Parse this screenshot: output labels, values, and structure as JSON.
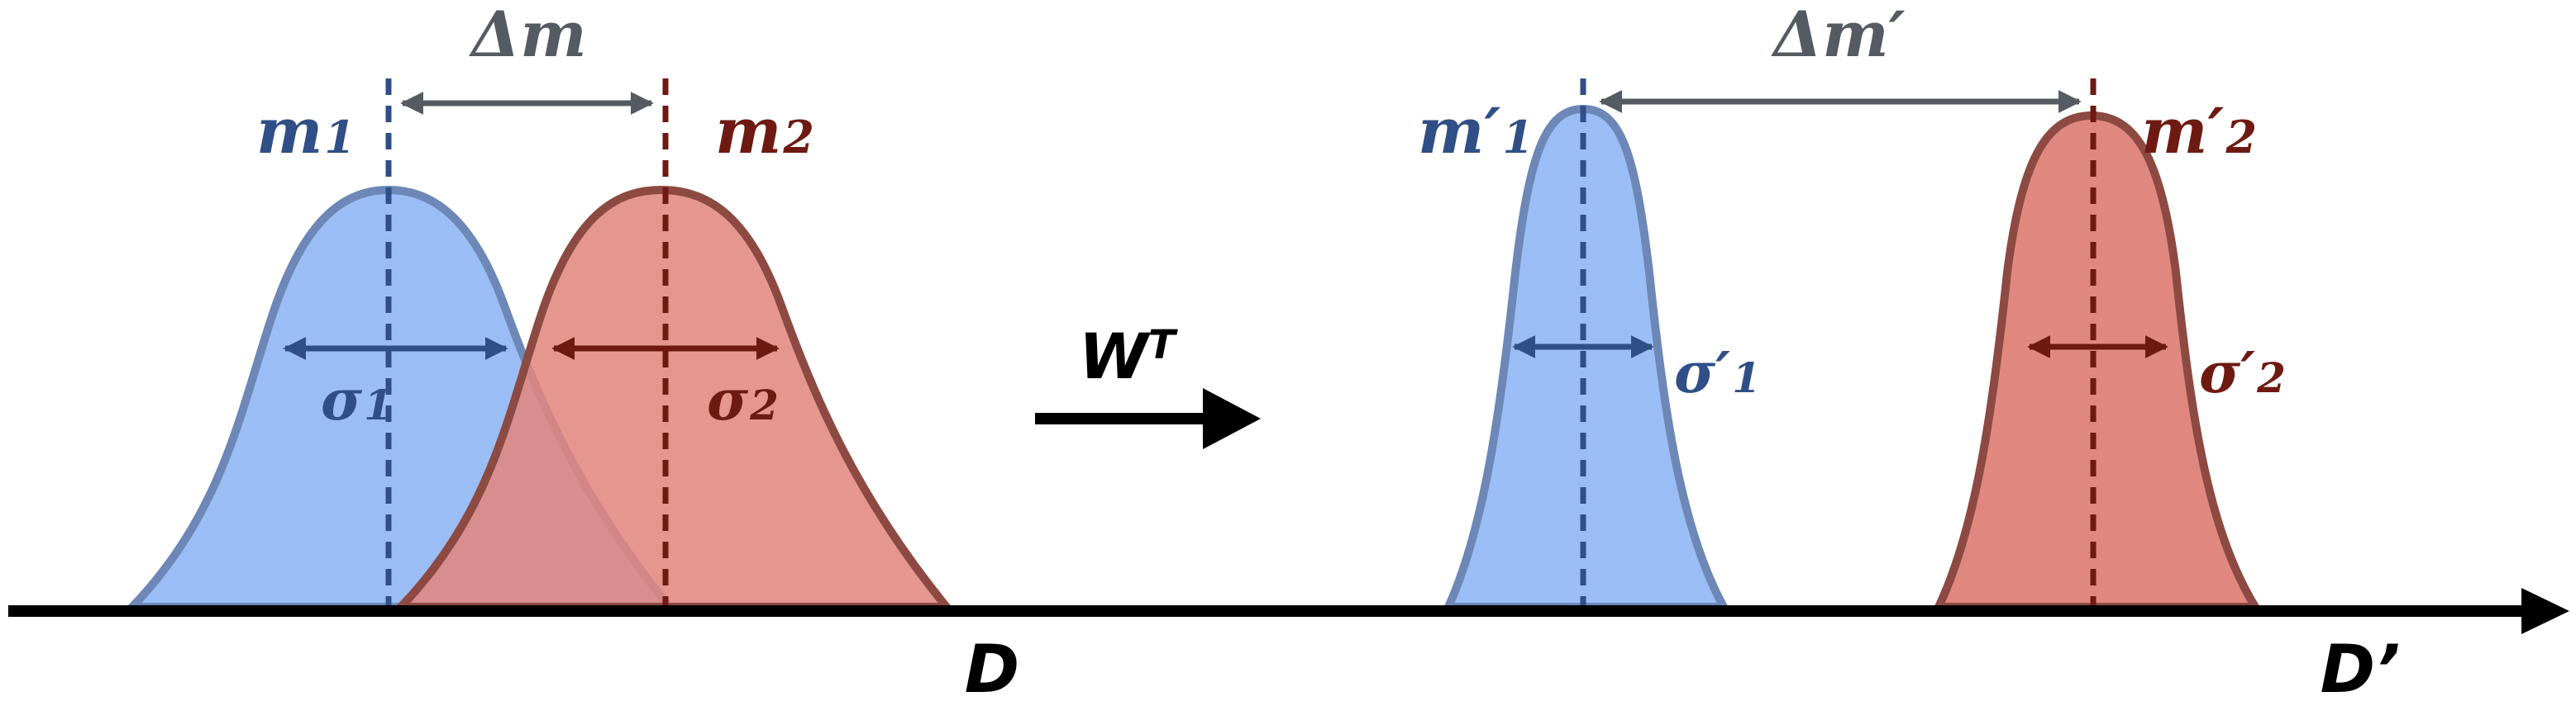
{
  "colors": {
    "blue_fill": "#9bbdf5",
    "blue_edge": "#6d87b7",
    "blue_dark": "#2f4f86",
    "red_fill": "#e08880",
    "red_edge": "#8d4a42",
    "red_dark": "#6e1a12",
    "grey": "#555b62",
    "black": "#000000"
  },
  "left_panel": {
    "mean1": {
      "letter": "m",
      "subscript": "1"
    },
    "mean2": {
      "letter": "m",
      "subscript": "2"
    },
    "delta": "Δm",
    "sigma1": {
      "letter": "σ",
      "subscript": "1"
    },
    "sigma2": {
      "letter": "σ",
      "subscript": "2"
    },
    "axis_label": "D"
  },
  "transform": {
    "label": "W",
    "superscript": "T"
  },
  "right_panel": {
    "mean1": {
      "letter": "m′",
      "subscript": "1"
    },
    "mean2": {
      "letter": "m′",
      "subscript": "2"
    },
    "delta": "Δm′",
    "sigma1": {
      "letter": "σ′",
      "subscript": "1"
    },
    "sigma2": {
      "letter": "σ′",
      "subscript": "2"
    },
    "axis_label": "D’"
  }
}
